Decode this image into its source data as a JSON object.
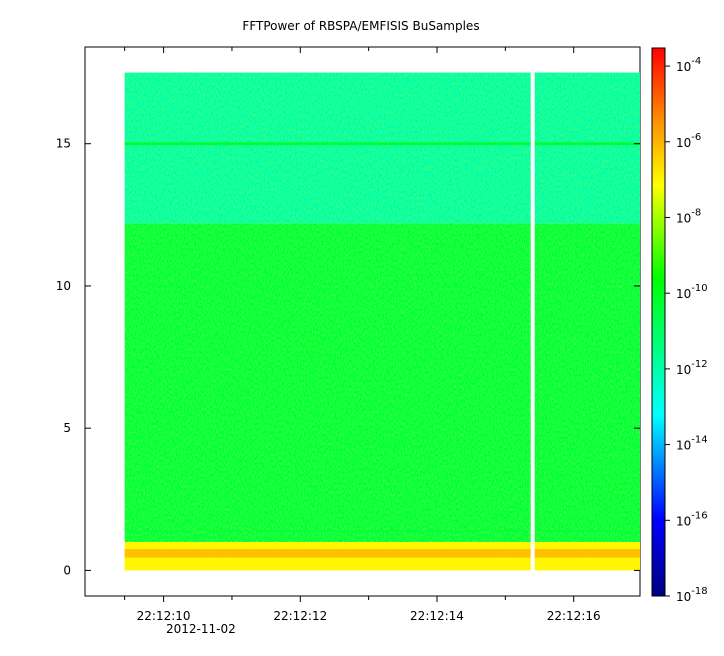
{
  "chart_data": {
    "type": "heatmap",
    "title": "FFTPower of RBSPA/EMFISIS  BuSamples",
    "xlabel": "",
    "ylabel": "",
    "x_axis": {
      "type": "time",
      "date_label": "2012-11-02",
      "range": [
        "22:12:08.85",
        "22:12:16.97"
      ],
      "ticks": [
        {
          "value": "22:12:09.43",
          "label": ""
        },
        {
          "value": "22:12:10",
          "label": "22:12:10"
        },
        {
          "value": "22:12:11",
          "label": ""
        },
        {
          "value": "22:12:12",
          "label": "22:12:12"
        },
        {
          "value": "22:12:13",
          "label": ""
        },
        {
          "value": "22:12:14",
          "label": "22:12:14"
        },
        {
          "value": "22:12:15",
          "label": ""
        },
        {
          "value": "22:12:16",
          "label": "22:12:16"
        }
      ]
    },
    "y_axis": {
      "range": [
        -0.9,
        18.4
      ],
      "ticks": [
        {
          "value": 0,
          "label": "0"
        },
        {
          "value": 5,
          "label": "5"
        },
        {
          "value": 10,
          "label": "10"
        },
        {
          "value": 15,
          "label": "15"
        }
      ]
    },
    "colorbar": {
      "scale": "log",
      "range": [
        1e-18,
        0.0003
      ],
      "ticks": [
        {
          "value": -4,
          "base": "10",
          "exp": "-4"
        },
        {
          "value": -6,
          "base": "10",
          "exp": "-6"
        },
        {
          "value": -8,
          "base": "10",
          "exp": "-8"
        },
        {
          "value": -10,
          "base": "10",
          "exp": "-10"
        },
        {
          "value": -12,
          "base": "10",
          "exp": "-12"
        },
        {
          "value": -14,
          "base": "10",
          "exp": "-14"
        },
        {
          "value": -16,
          "base": "10",
          "exp": "-16"
        },
        {
          "value": -18,
          "base": "10",
          "exp": "-18"
        }
      ],
      "colors": [
        "#00007f",
        "#0000ff",
        "#00ffff",
        "#00ff00",
        "#ffff00",
        "#ff8c00",
        "#ff0000"
      ]
    },
    "data_extent": {
      "time": [
        "22:12:09.43",
        "22:12:16.97"
      ],
      "frequency": [
        0,
        17.5
      ]
    },
    "gap": {
      "time": "22:12:15.40"
    },
    "bands": [
      {
        "name": "low-frequency line",
        "y_from": 0.0,
        "y_to": 1.0,
        "log10_power": -7.0
      },
      {
        "name": "mid band",
        "y_from": 1.0,
        "y_to": 12.2,
        "log10_power": -10.5
      },
      {
        "name": "upper band",
        "y_from": 12.2,
        "y_to": 17.5,
        "log10_power": -12.0
      },
      {
        "name": "line at 15",
        "y_from": 14.95,
        "y_to": 15.05,
        "log10_power": -10.3
      }
    ],
    "grid": false,
    "legend": "colorbar-right"
  }
}
